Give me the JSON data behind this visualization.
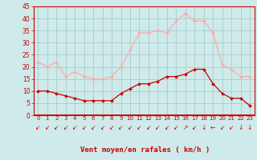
{
  "hours": [
    0,
    1,
    2,
    3,
    4,
    5,
    6,
    7,
    8,
    9,
    10,
    11,
    12,
    13,
    14,
    15,
    16,
    17,
    18,
    19,
    20,
    21,
    22,
    23
  ],
  "vent_moyen": [
    10,
    10,
    9,
    8,
    7,
    6,
    6,
    6,
    6,
    9,
    11,
    13,
    13,
    14,
    16,
    16,
    17,
    19,
    19,
    13,
    9,
    7,
    7,
    4
  ],
  "rafales": [
    22,
    20,
    22,
    16,
    18,
    16,
    15,
    15,
    16,
    20,
    27,
    34,
    34,
    35,
    34,
    39,
    42,
    39,
    39,
    34,
    21,
    19,
    16,
    16
  ],
  "bg_color": "#ceeaea",
  "grid_color": "#aacaca",
  "line_moyen_color": "#cc0000",
  "line_rafales_color": "#ffaaaa",
  "xlabel": "Vent moyen/en rafales ( km/h )",
  "xlabel_color": "#cc0000",
  "tick_color": "#cc0000",
  "arrow_color": "#cc0000",
  "ylim": [
    0,
    45
  ],
  "yticks": [
    0,
    5,
    10,
    15,
    20,
    25,
    30,
    35,
    40,
    45
  ]
}
